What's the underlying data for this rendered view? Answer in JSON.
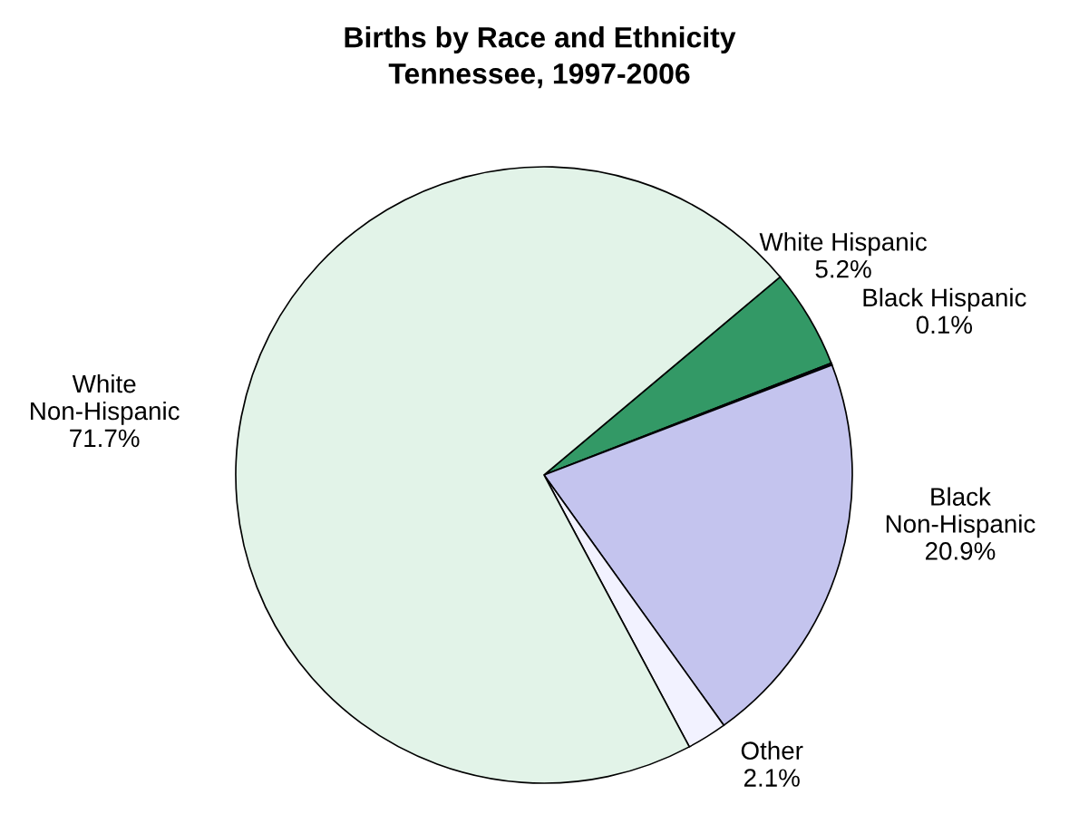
{
  "chart_data": {
    "type": "pie",
    "title": "Births by Race and Ethnicity",
    "subtitle": "Tennessee, 1997-2006",
    "categories": [
      "White Hispanic",
      "Black Hispanic",
      "Black\nNon-Hispanic",
      "Other",
      "White\nNon-Hispanic"
    ],
    "values": [
      5.2,
      0.1,
      20.9,
      2.1,
      71.7
    ],
    "value_labels": [
      "5.2%",
      "0.1%",
      "20.9%",
      "2.1%",
      "71.7%"
    ],
    "colors": [
      "#339966",
      "#000080",
      "#c4c4ee",
      "#f2f2ff",
      "#e2f3e8"
    ]
  }
}
